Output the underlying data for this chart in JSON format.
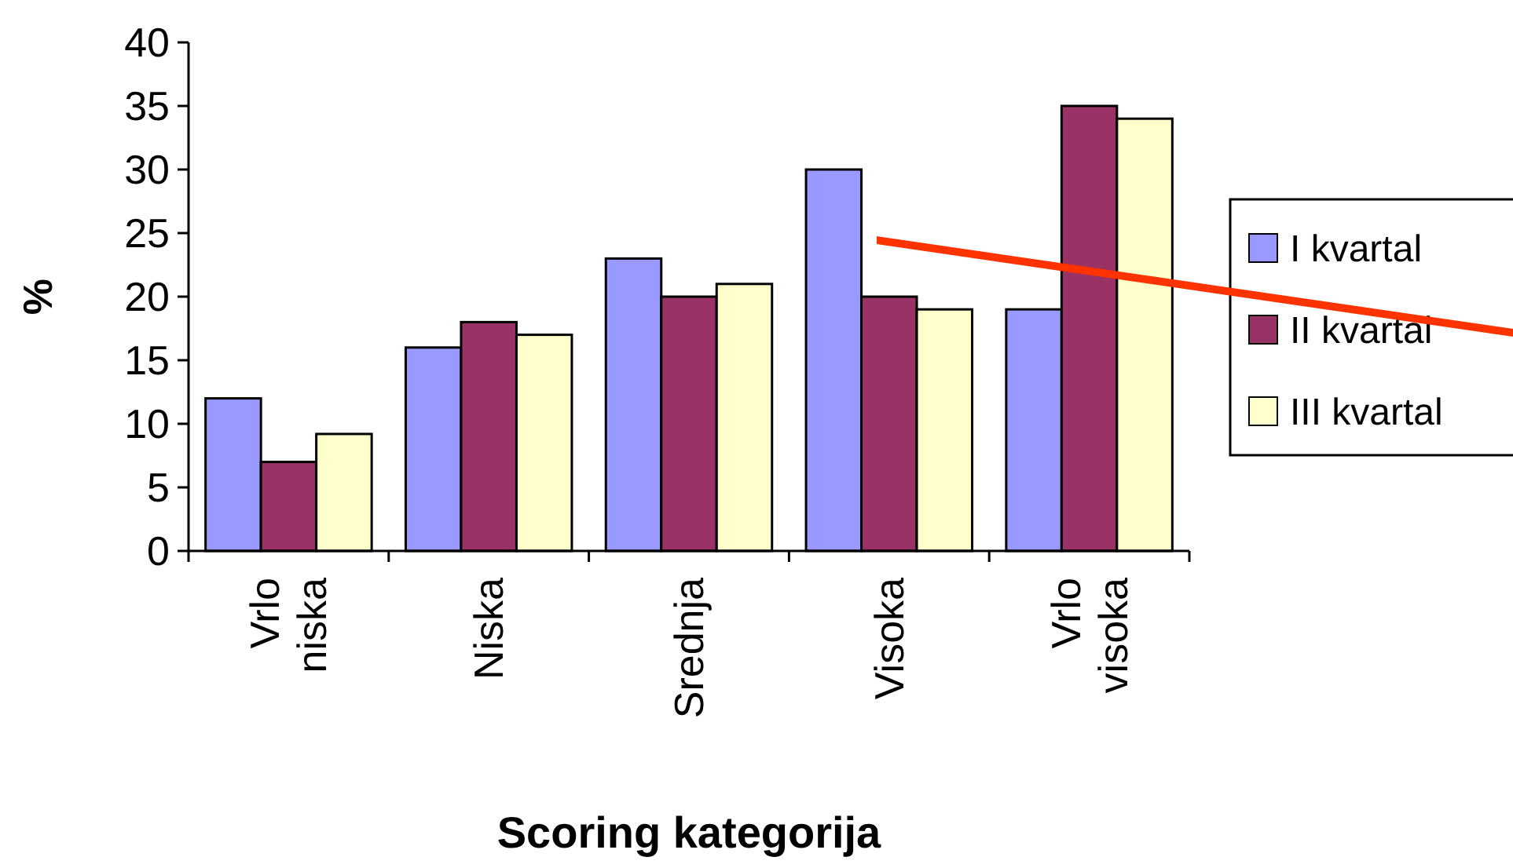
{
  "chart_data": {
    "type": "bar",
    "xlabel": "Scoring kategorija",
    "ylabel": "%",
    "categories": [
      "Vrlo niska",
      "Niska",
      "Srednja",
      "Visoka",
      "Vrlo visoka"
    ],
    "series": [
      {
        "name": "I kvartal",
        "color": "#9999ff",
        "values": [
          12,
          16,
          23,
          30,
          19
        ]
      },
      {
        "name": "II kvartal",
        "color": "#993366",
        "values": [
          7,
          18,
          20,
          20,
          35
        ]
      },
      {
        "name": "III kvartal",
        "color": "#ffffcc",
        "values": [
          9.2,
          17,
          21,
          19,
          34
        ]
      }
    ],
    "ylim": [
      0,
      40
    ],
    "yticks": [
      0,
      5,
      10,
      15,
      20,
      25,
      30,
      35,
      40
    ],
    "grid": false,
    "legend": "right"
  }
}
